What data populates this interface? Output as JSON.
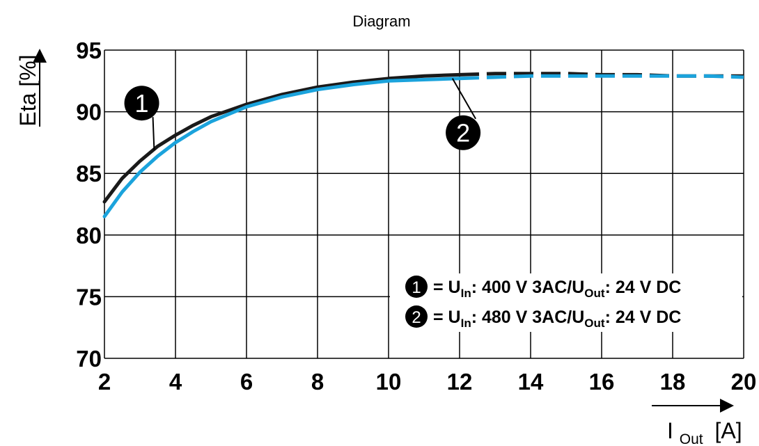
{
  "chart_data": {
    "type": "line",
    "title": "Diagram",
    "xlabel": {
      "main": "I",
      "sub": "Out",
      "unit": "[A]"
    },
    "ylabel": "Eta [%]",
    "xlim": [
      2,
      20
    ],
    "ylim": [
      70,
      95
    ],
    "xticks": [
      "2",
      "4",
      "6",
      "8",
      "10",
      "12",
      "14",
      "16",
      "18",
      "20"
    ],
    "yticks": [
      "70",
      "75",
      "80",
      "85",
      "90",
      "95"
    ],
    "grid": true,
    "series": [
      {
        "id": "1",
        "color": "#1a1a1a",
        "solid_until": 12.2,
        "x": [
          2,
          2.5,
          3,
          3.5,
          4,
          4.5,
          5,
          5.5,
          6,
          7,
          8,
          9,
          10,
          11,
          12,
          13,
          14,
          15,
          16,
          17,
          18,
          19,
          20
        ],
        "y": [
          82.7,
          84.6,
          86.0,
          87.2,
          88.1,
          88.9,
          89.6,
          90.1,
          90.6,
          91.4,
          92.0,
          92.4,
          92.7,
          92.9,
          93.0,
          93.1,
          93.1,
          93.1,
          93.0,
          93.0,
          92.9,
          92.9,
          92.9
        ]
      },
      {
        "id": "2",
        "color": "#1ba3dc",
        "solid_until": 12.2,
        "x": [
          2,
          2.5,
          3,
          3.5,
          4,
          4.5,
          5,
          5.5,
          6,
          7,
          8,
          9,
          10,
          11,
          12,
          13,
          14,
          15,
          16,
          17,
          18,
          19,
          20
        ],
        "y": [
          81.5,
          83.5,
          85.1,
          86.4,
          87.5,
          88.4,
          89.2,
          89.8,
          90.4,
          91.2,
          91.8,
          92.2,
          92.5,
          92.6,
          92.7,
          92.8,
          92.9,
          92.9,
          92.9,
          92.9,
          92.9,
          92.9,
          92.8
        ]
      }
    ],
    "markers": [
      {
        "label": "1",
        "x": 3.05,
        "y": 90.7
      },
      {
        "label": "2",
        "x": 12.1,
        "y": 88.3
      }
    ],
    "legend": {
      "placement": "bottom-right",
      "entries": [
        {
          "id": "1",
          "prefix": "= U",
          "sub1": "In",
          "mid": ": 400 V 3AC/U",
          "sub2": "Out",
          "suffix": ": 24 V DC"
        },
        {
          "id": "2",
          "prefix": "= U",
          "sub1": "In",
          "mid": ": 480 V 3AC/U",
          "sub2": "Out",
          "suffix": ": 24 V DC"
        }
      ]
    }
  }
}
